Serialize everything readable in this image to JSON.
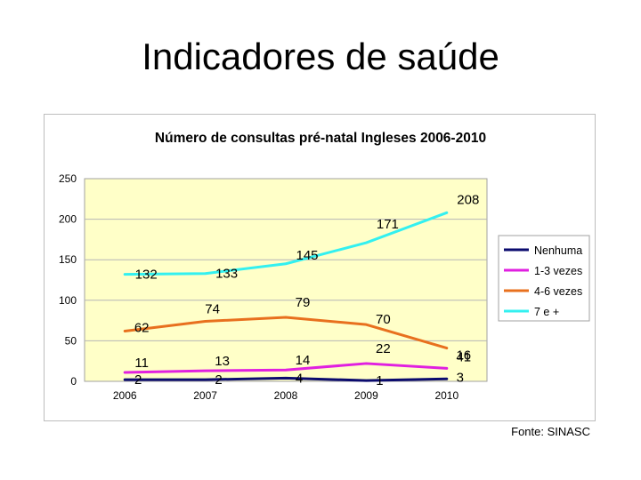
{
  "slide": {
    "title": "Indicadores de saúde",
    "source": "Fonte: SINASC"
  },
  "chart_data": {
    "type": "line",
    "title": "Número de consultas pré-natal Ingleses 2006-2010",
    "categories": [
      "2006",
      "2007",
      "2008",
      "2009",
      "2010"
    ],
    "ylim": [
      0,
      250
    ],
    "yticks": [
      0,
      50,
      100,
      150,
      200,
      250
    ],
    "grid": true,
    "legend_position": "right",
    "plot_background": "#FFFFC8",
    "series": [
      {
        "name": "Nenhuma",
        "values": [
          2,
          2,
          4,
          1,
          3
        ],
        "color": "#0B0B6E"
      },
      {
        "name": "1-3 vezes",
        "values": [
          11,
          13,
          14,
          22,
          16
        ],
        "color": "#E020E0"
      },
      {
        "name": "4-6 vezes",
        "values": [
          62,
          74,
          79,
          70,
          41
        ],
        "color": "#E8701E"
      },
      {
        "name": "7 e +",
        "values": [
          132,
          133,
          145,
          171,
          208
        ],
        "color": "#33F0F0"
      }
    ]
  }
}
